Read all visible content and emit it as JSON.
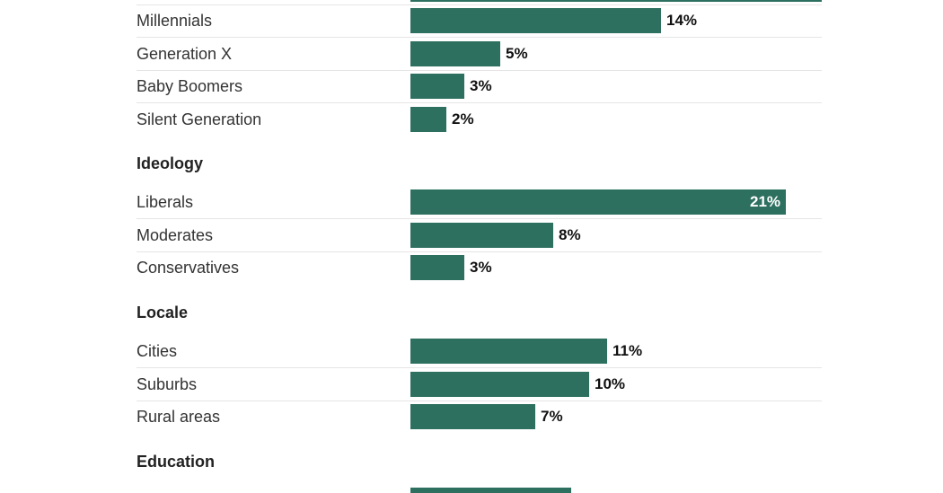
{
  "colors": {
    "bar": "#2e7060",
    "divider": "#e5e5e5"
  },
  "chart_data": {
    "type": "bar",
    "orientation": "horizontal",
    "value_suffix": "%",
    "xlim": [
      0,
      23
    ],
    "groups": [
      {
        "heading": "",
        "items": [
          {
            "label": "Millennials",
            "value": 14,
            "value_label": "14%"
          },
          {
            "label": "Generation X",
            "value": 5,
            "value_label": "5%"
          },
          {
            "label": "Baby Boomers",
            "value": 3,
            "value_label": "3%"
          },
          {
            "label": "Silent Generation",
            "value": 2,
            "value_label": "2%"
          }
        ]
      },
      {
        "heading": "Ideology",
        "items": [
          {
            "label": "Liberals",
            "value": 21,
            "value_label": "21%"
          },
          {
            "label": "Moderates",
            "value": 8,
            "value_label": "8%"
          },
          {
            "label": "Conservatives",
            "value": 3,
            "value_label": "3%"
          }
        ]
      },
      {
        "heading": "Locale",
        "items": [
          {
            "label": "Cities",
            "value": 11,
            "value_label": "11%"
          },
          {
            "label": "Suburbs",
            "value": 10,
            "value_label": "10%"
          },
          {
            "label": "Rural areas",
            "value": 7,
            "value_label": "7%"
          }
        ]
      },
      {
        "heading": "Education",
        "items": [
          {
            "label": "",
            "value": 9,
            "value_label": ""
          }
        ]
      }
    ]
  }
}
